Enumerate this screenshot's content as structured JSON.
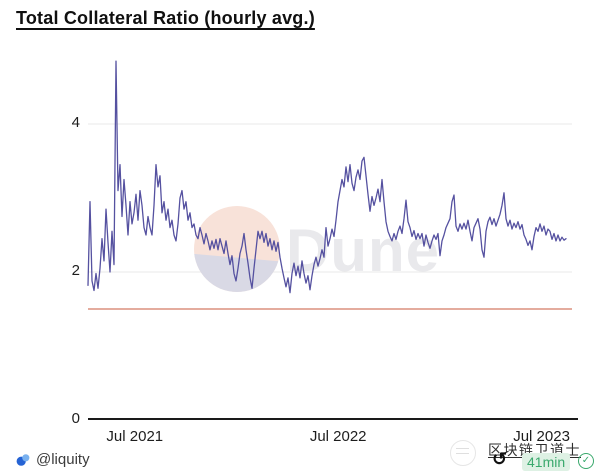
{
  "page": {
    "title": "Total Collateral Ratio (hourly avg.)"
  },
  "attribution": {
    "handle": "@liquity",
    "icon": "liquity-droplet-icon"
  },
  "overlay": {
    "stamp_icon": "faint-seal-icon",
    "channel_name": "区块链卫道士",
    "rotate_icon": "↺",
    "read_time": "41min",
    "check_icon": "✓"
  },
  "colors": {
    "line": "#5551a0",
    "reference": "#db907e",
    "grid": "#e9e9e9",
    "axis": "#1a1a1a",
    "green": "#3aa96d",
    "green_bg": "#def1e4",
    "watermark_peach": "#f8e2d9",
    "watermark_lavender": "#d9d9e5",
    "dune_text": "#e9e9ec",
    "liquity_blue": "#2563d4",
    "liquity_blue_light": "#79b1ef"
  },
  "chart_data": {
    "type": "line",
    "title": "Total Collateral Ratio (hourly avg.)",
    "xlabel": "",
    "ylabel": "",
    "x_start": 2021.27,
    "x_end": 2023.62,
    "ylim": [
      0,
      5.1
    ],
    "grid_on": true,
    "grid_values": [
      2,
      4
    ],
    "y_ticks": [
      {
        "label": "0",
        "v": 0
      },
      {
        "label": "2",
        "v": 2
      },
      {
        "label": "4",
        "v": 4
      }
    ],
    "x_ticks": [
      {
        "label": "Jul 2021",
        "x": 2021.5
      },
      {
        "label": "Jul 2022",
        "x": 2022.5
      },
      {
        "label": "Jul 2023",
        "x": 2023.5
      }
    ],
    "reference_line": {
      "value": 1.5,
      "color": "#db907e"
    },
    "watermark": "Dune",
    "series": [
      {
        "name": "Total Collateral Ratio",
        "color": "#5551a0",
        "values": [
          1.82,
          2.95,
          1.88,
          1.75,
          1.98,
          1.78,
          2.05,
          2.45,
          2.15,
          2.85,
          2.4,
          2.0,
          2.55,
          2.1,
          4.85,
          3.1,
          3.45,
          2.75,
          3.25,
          2.9,
          2.5,
          2.95,
          2.65,
          2.8,
          3.05,
          2.7,
          3.1,
          2.9,
          2.6,
          2.5,
          2.75,
          2.6,
          2.5,
          2.9,
          3.45,
          3.15,
          3.3,
          2.8,
          2.95,
          2.7,
          2.85,
          2.6,
          2.7,
          2.5,
          2.42,
          2.65,
          3.0,
          3.1,
          2.85,
          2.95,
          2.7,
          2.8,
          2.6,
          2.65,
          2.5,
          2.45,
          2.6,
          2.5,
          2.38,
          2.52,
          2.42,
          2.3,
          2.42,
          2.32,
          2.44,
          2.3,
          2.45,
          2.35,
          2.25,
          2.42,
          2.25,
          2.1,
          2.22,
          1.98,
          1.88,
          2.05,
          2.25,
          2.35,
          2.52,
          2.3,
          2.12,
          1.92,
          1.78,
          2.05,
          2.3,
          2.55,
          2.45,
          2.55,
          2.4,
          2.52,
          2.35,
          2.45,
          2.3,
          2.42,
          2.28,
          2.4,
          2.2,
          2.05,
          1.92,
          1.8,
          1.92,
          1.72,
          1.98,
          2.12,
          1.95,
          2.08,
          1.92,
          2.15,
          1.98,
          1.85,
          1.95,
          1.76,
          1.95,
          2.1,
          2.2,
          2.08,
          2.18,
          2.3,
          2.2,
          2.6,
          2.35,
          2.45,
          2.58,
          2.48,
          2.7,
          2.95,
          3.1,
          3.25,
          3.15,
          3.42,
          3.22,
          3.45,
          3.2,
          3.1,
          3.28,
          3.38,
          3.25,
          3.5,
          3.55,
          3.3,
          3.05,
          2.82,
          3.02,
          2.9,
          3.0,
          3.12,
          2.95,
          3.25,
          2.95,
          2.68,
          2.55,
          2.48,
          2.42,
          2.52,
          2.44,
          2.55,
          2.62,
          2.52,
          2.72,
          2.97,
          2.68,
          2.6,
          2.48,
          2.56,
          2.44,
          2.52,
          2.45,
          2.52,
          2.35,
          2.5,
          2.4,
          2.32,
          2.42,
          2.5,
          2.44,
          2.52,
          2.22,
          2.42,
          2.5,
          2.6,
          2.66,
          2.72,
          2.95,
          3.04,
          2.62,
          2.55,
          2.65,
          2.58,
          2.66,
          2.58,
          2.7,
          2.55,
          2.42,
          2.6,
          2.66,
          2.72,
          2.58,
          2.3,
          2.2,
          2.55,
          2.68,
          2.74,
          2.64,
          2.72,
          2.62,
          2.7,
          2.78,
          2.9,
          3.07,
          2.72,
          2.62,
          2.7,
          2.58,
          2.66,
          2.6,
          2.68,
          2.58,
          2.64,
          2.5,
          2.44,
          2.36,
          2.42,
          2.3,
          2.48,
          2.6,
          2.55,
          2.65,
          2.55,
          2.62,
          2.5,
          2.58,
          2.55,
          2.44,
          2.52,
          2.42,
          2.5,
          2.42,
          2.47,
          2.43,
          2.45
        ]
      }
    ]
  }
}
